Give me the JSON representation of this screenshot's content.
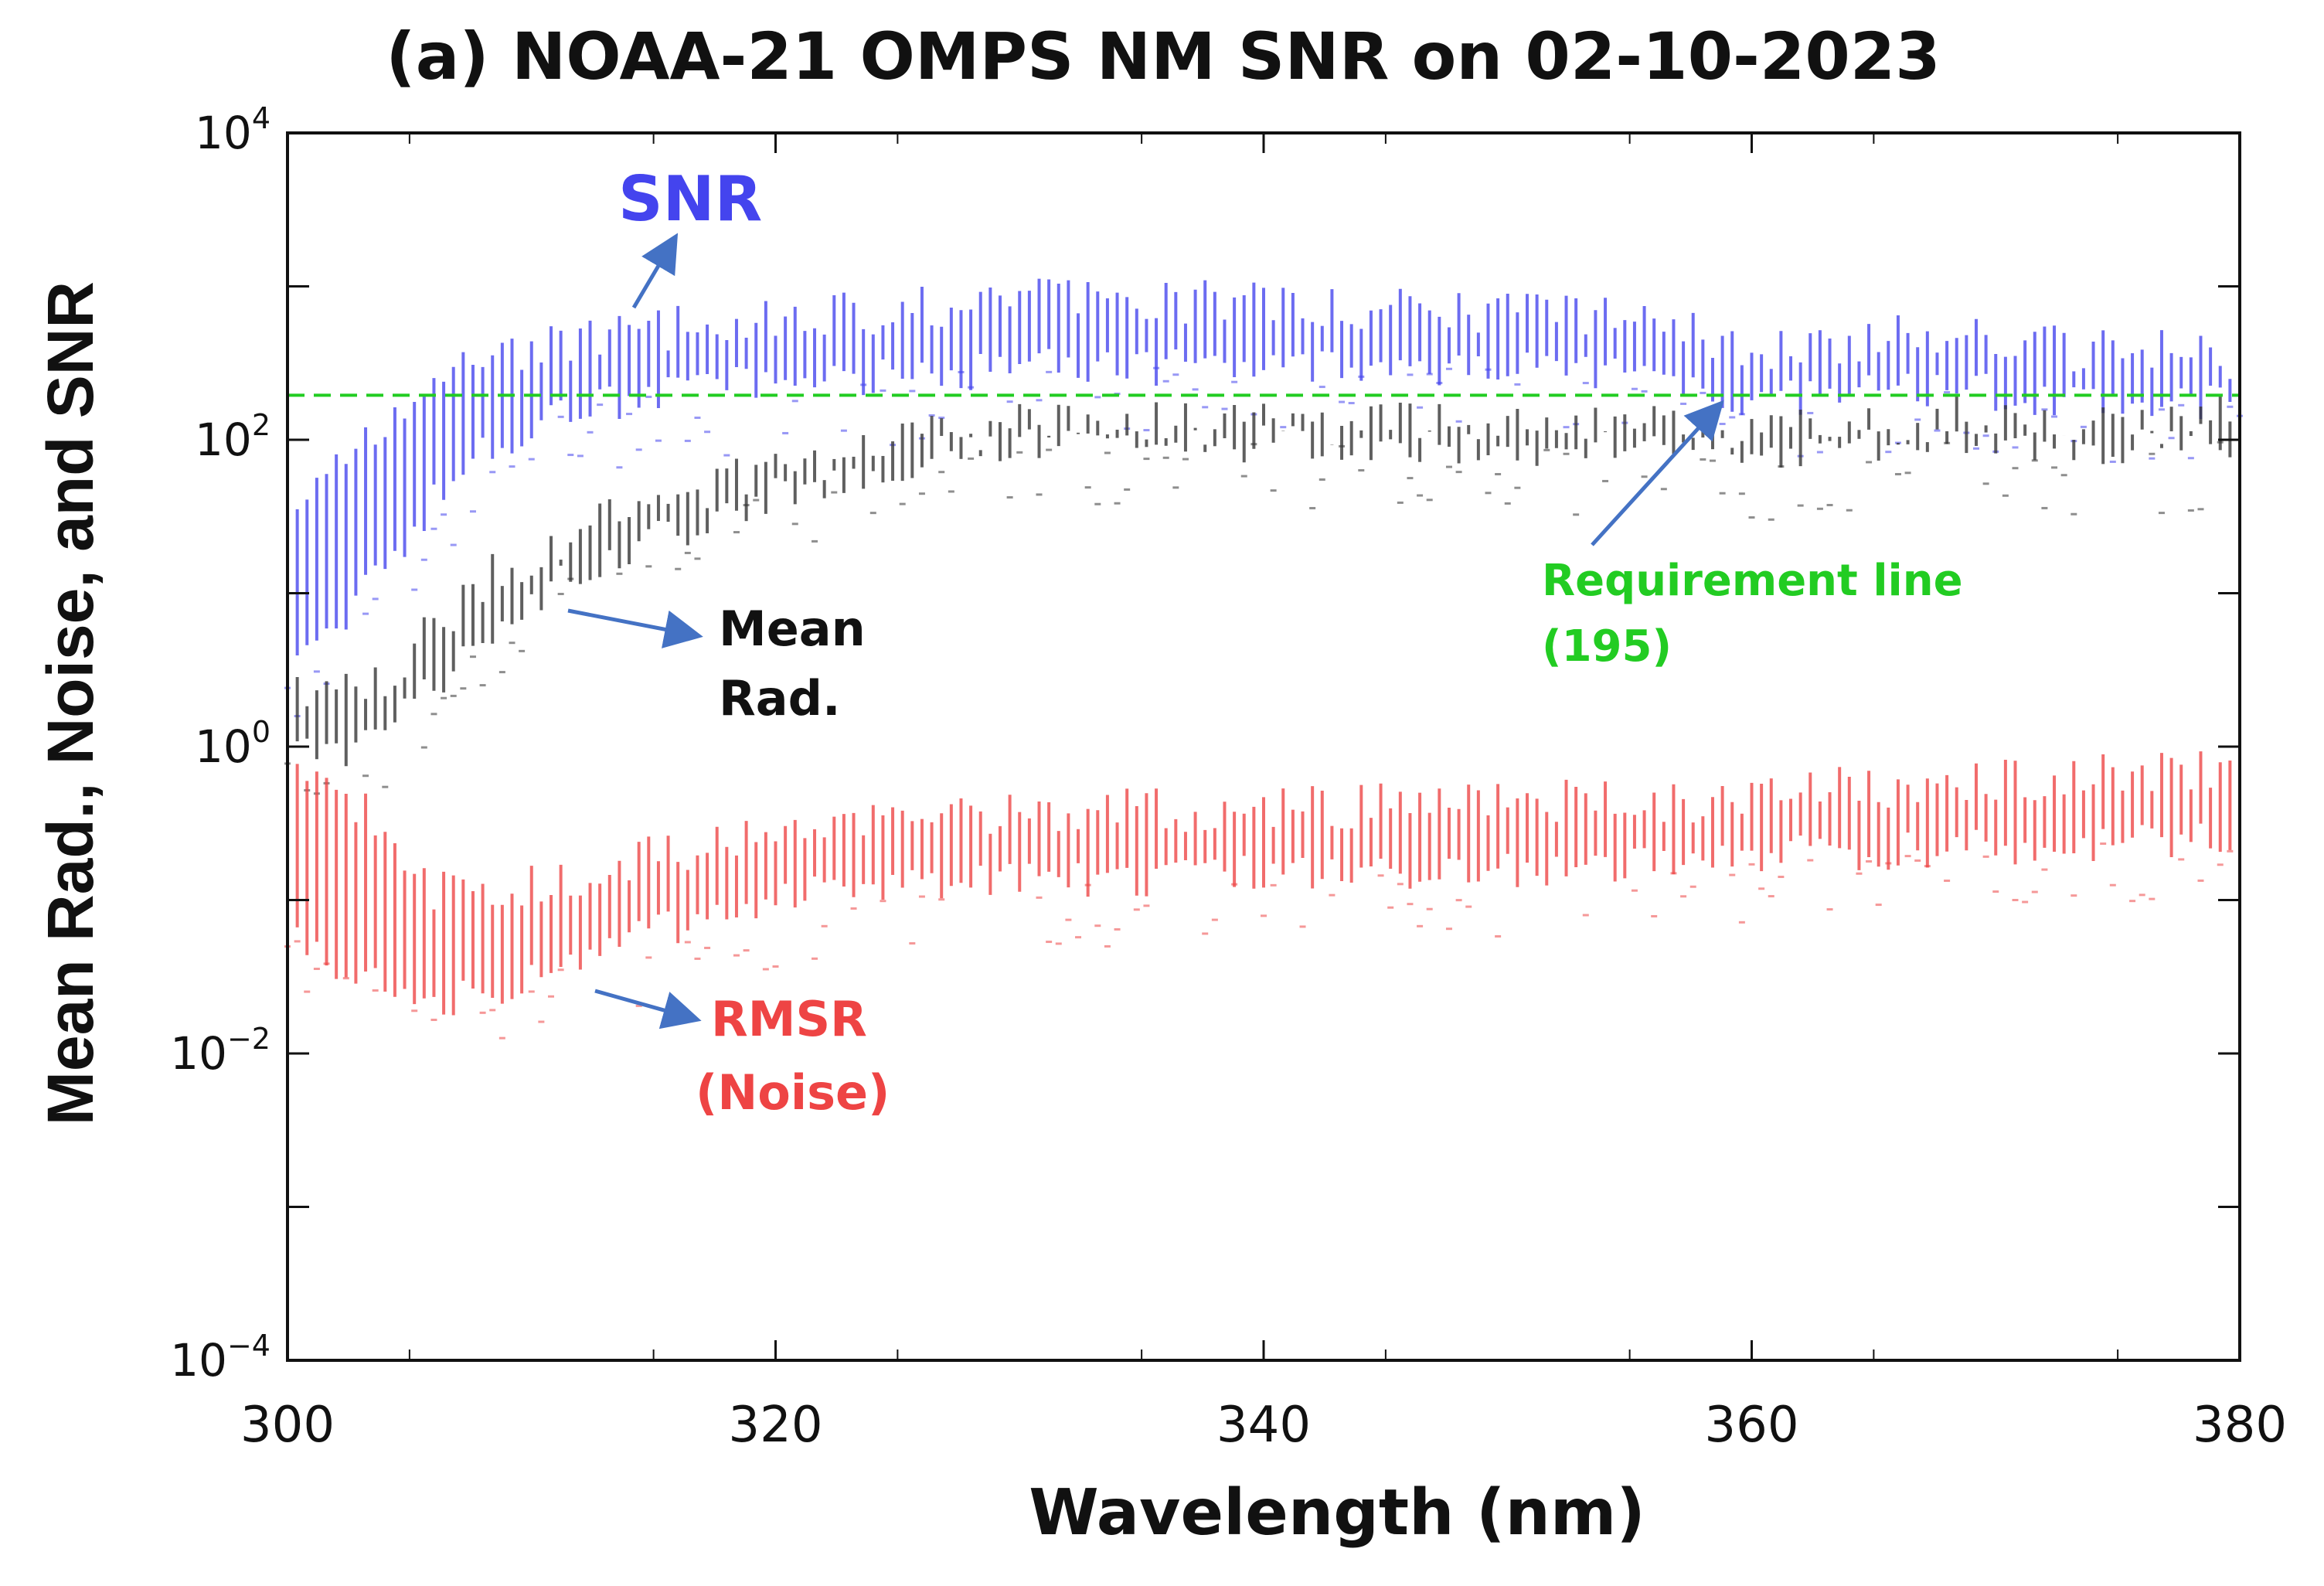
{
  "chart_data": {
    "type": "scatter",
    "title": "(a) NOAA-21 OMPS NM SNR on 02-10-2023",
    "xlabel": "Wavelength (nm)",
    "ylabel": "Mean Rad., Noise, and SNR",
    "xlim": [
      300,
      380
    ],
    "ylim": [
      0.0001,
      10000
    ],
    "yscale": "log",
    "x_ticks": [
      300,
      320,
      340,
      360,
      380
    ],
    "y_ticks": [
      {
        "value": 10000,
        "base": "10",
        "exp": "4"
      },
      {
        "value": 100,
        "base": "10",
        "exp": "2"
      },
      {
        "value": 1,
        "base": "10",
        "exp": "0"
      },
      {
        "value": 0.01,
        "base": "10",
        "exp": "−2"
      },
      {
        "value": 0.0001,
        "base": "10",
        "exp": "−4"
      }
    ],
    "requirement": {
      "value": 195,
      "color": "#22cc22",
      "label_line1": "Requirement line",
      "label_line2": "(195)"
    },
    "series": [
      {
        "name": "SNR",
        "label": "SNR",
        "color": "#4444ee",
        "x": [
          300,
          302,
          304,
          306,
          308,
          310,
          312,
          315,
          318,
          320,
          322,
          325,
          328,
          330,
          335,
          340,
          345,
          350,
          355,
          358,
          360,
          362,
          365,
          368,
          370,
          372,
          375,
          378,
          380
        ],
        "low": [
          3,
          6,
          15,
          40,
          80,
          120,
          160,
          200,
          220,
          240,
          250,
          260,
          280,
          300,
          300,
          300,
          280,
          300,
          280,
          230,
          170,
          190,
          200,
          220,
          200,
          190,
          180,
          180,
          180
        ],
        "high": [
          30,
          60,
          120,
          250,
          320,
          400,
          450,
          520,
          550,
          600,
          650,
          700,
          750,
          800,
          800,
          800,
          700,
          700,
          650,
          500,
          350,
          420,
          450,
          500,
          420,
          400,
          380,
          360,
          350
        ]
      },
      {
        "name": "Mean Rad.",
        "label_line1": "Mean",
        "label_line2": "Rad.",
        "color": "#333333",
        "x": [
          300,
          302,
          304,
          306,
          308,
          310,
          312,
          315,
          318,
          320,
          322,
          325,
          328,
          330,
          335,
          340,
          345,
          350,
          355,
          358,
          360,
          362,
          365,
          368,
          370,
          372,
          375,
          378,
          380
        ],
        "low": [
          1,
          0.8,
          1.2,
          2.5,
          5,
          9,
          14,
          22,
          35,
          45,
          55,
          70,
          90,
          95,
          95,
          95,
          95,
          90,
          90,
          85,
          80,
          85,
          90,
          100,
          95,
          90,
          88,
          95,
          100
        ],
        "high": [
          2.5,
          2,
          3,
          6,
          12,
          18,
          26,
          38,
          55,
          65,
          75,
          95,
          115,
          125,
          125,
          130,
          125,
          120,
          120,
          115,
          110,
          120,
          125,
          140,
          130,
          125,
          120,
          130,
          145
        ]
      },
      {
        "name": "RMSR (Noise)",
        "label_line1": "RMSR",
        "label_line2": "(Noise)",
        "color": "#ee4444",
        "x": [
          300,
          302,
          304,
          306,
          308,
          310,
          312,
          315,
          318,
          320,
          322,
          325,
          328,
          330,
          335,
          340,
          345,
          350,
          355,
          358,
          360,
          362,
          365,
          368,
          370,
          372,
          375,
          378,
          380
        ],
        "low": [
          0.06,
          0.04,
          0.03,
          0.02,
          0.025,
          0.03,
          0.04,
          0.06,
          0.08,
          0.1,
          0.11,
          0.12,
          0.13,
          0.14,
          0.14,
          0.15,
          0.15,
          0.16,
          0.17,
          0.18,
          0.18,
          0.2,
          0.2,
          0.22,
          0.22,
          0.23,
          0.24,
          0.25,
          0.25
        ],
        "high": [
          0.9,
          0.5,
          0.3,
          0.12,
          0.1,
          0.12,
          0.15,
          0.2,
          0.25,
          0.3,
          0.32,
          0.35,
          0.35,
          0.38,
          0.38,
          0.4,
          0.42,
          0.42,
          0.45,
          0.45,
          0.5,
          0.5,
          0.55,
          0.6,
          0.6,
          0.62,
          0.65,
          0.68,
          0.7
        ]
      }
    ]
  }
}
